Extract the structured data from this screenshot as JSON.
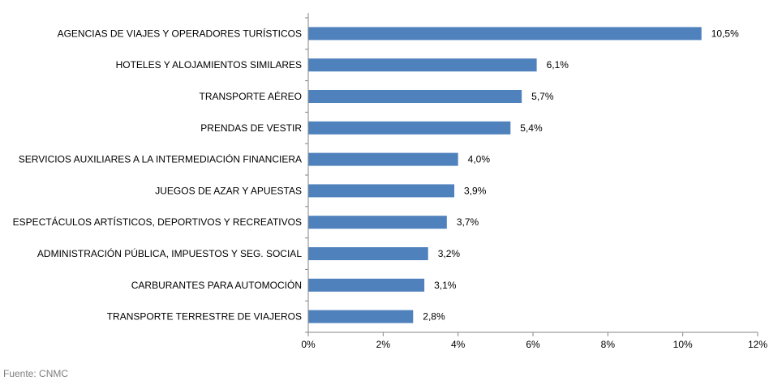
{
  "chart_data": {
    "type": "bar",
    "orientation": "horizontal",
    "title": "",
    "xlabel": "",
    "ylabel": "",
    "categories": [
      "AGENCIAS DE VIAJES Y OPERADORES TURÍSTICOS",
      "HOTELES  Y ALOJAMIENTOS SIMILARES",
      "TRANSPORTE AÉREO",
      "PRENDAS DE VESTIR",
      "SERVICIOS AUXILIARES A LA INTERMEDIACIÓN FINANCIERA",
      "JUEGOS DE AZAR Y APUESTAS",
      "ESPECTÁCULOS ARTÍSTICOS, DEPORTIVOS Y RECREATIVOS",
      "ADMINISTRACIÓN PÚBLICA, IMPUESTOS Y SEG. SOCIAL",
      "CARBURANTES PARA AUTOMOCIÓN",
      "TRANSPORTE TERRESTRE DE VIAJEROS"
    ],
    "values": [
      10.5,
      6.1,
      5.7,
      5.4,
      4.0,
      3.9,
      3.7,
      3.2,
      3.1,
      2.8
    ],
    "value_labels": [
      "10,5%",
      "6,1%",
      "5,7%",
      "5,4%",
      "4,0%",
      "3,9%",
      "3,7%",
      "3,2%",
      "3,1%",
      "2,8%"
    ],
    "xlim": [
      0,
      12
    ],
    "x_ticks": [
      0,
      2,
      4,
      6,
      8,
      10,
      12
    ],
    "x_tick_labels": [
      "0%",
      "2%",
      "4%",
      "6%",
      "8%",
      "10%",
      "12%"
    ],
    "grid": false,
    "legend": "none",
    "bar_color": "#4f81bd",
    "axis_color": "#868686"
  },
  "source": "Fuente: CNMC"
}
